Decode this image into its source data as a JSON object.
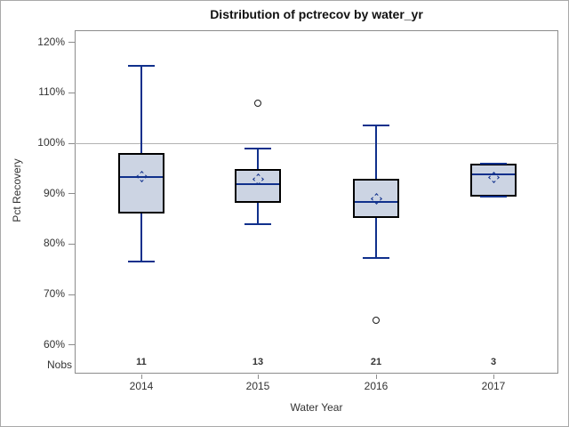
{
  "chart_data": {
    "type": "boxplot",
    "title": "Distribution of pctrecov by water_yr",
    "xlabel": "Water Year",
    "ylabel": "Pct Recovery",
    "nobs_label": "Nobs",
    "ylim": [
      54,
      122.5
    ],
    "yticks": [
      60,
      70,
      80,
      90,
      100,
      110,
      120
    ],
    "ytick_suffix": "%",
    "reference_line": 100,
    "grid": "off",
    "categories": [
      "2014",
      "2015",
      "2016",
      "2017"
    ],
    "boxes": [
      {
        "category": "2014",
        "nobs": "11",
        "whisker_low": 76.5,
        "q1": 86.0,
        "median": 93.3,
        "q3": 98.1,
        "whisker_high": 115.4,
        "mean": 93.4,
        "outliers": []
      },
      {
        "category": "2015",
        "nobs": "13",
        "whisker_low": 84.0,
        "q1": 88.2,
        "median": 91.8,
        "q3": 94.9,
        "whisker_high": 99.0,
        "mean": 92.9,
        "outliers": [
          108.0
        ]
      },
      {
        "category": "2016",
        "nobs": "21",
        "whisker_low": 77.2,
        "q1": 85.2,
        "median": 88.3,
        "q3": 92.9,
        "whisker_high": 103.5,
        "mean": 89.0,
        "outliers": [
          64.8
        ]
      },
      {
        "category": "2017",
        "nobs": "3",
        "whisker_low": 89.4,
        "q1": 89.4,
        "median": 93.8,
        "q3": 95.9,
        "whisker_high": 95.9,
        "mean": 93.2,
        "outliers": []
      }
    ],
    "colors": {
      "box_fill": "#ccd4e3",
      "box_border": "#000000",
      "line": "#10308c",
      "reference_line": "#b2b2b2",
      "axis": "#8c8c8c",
      "text": "#333333"
    }
  }
}
